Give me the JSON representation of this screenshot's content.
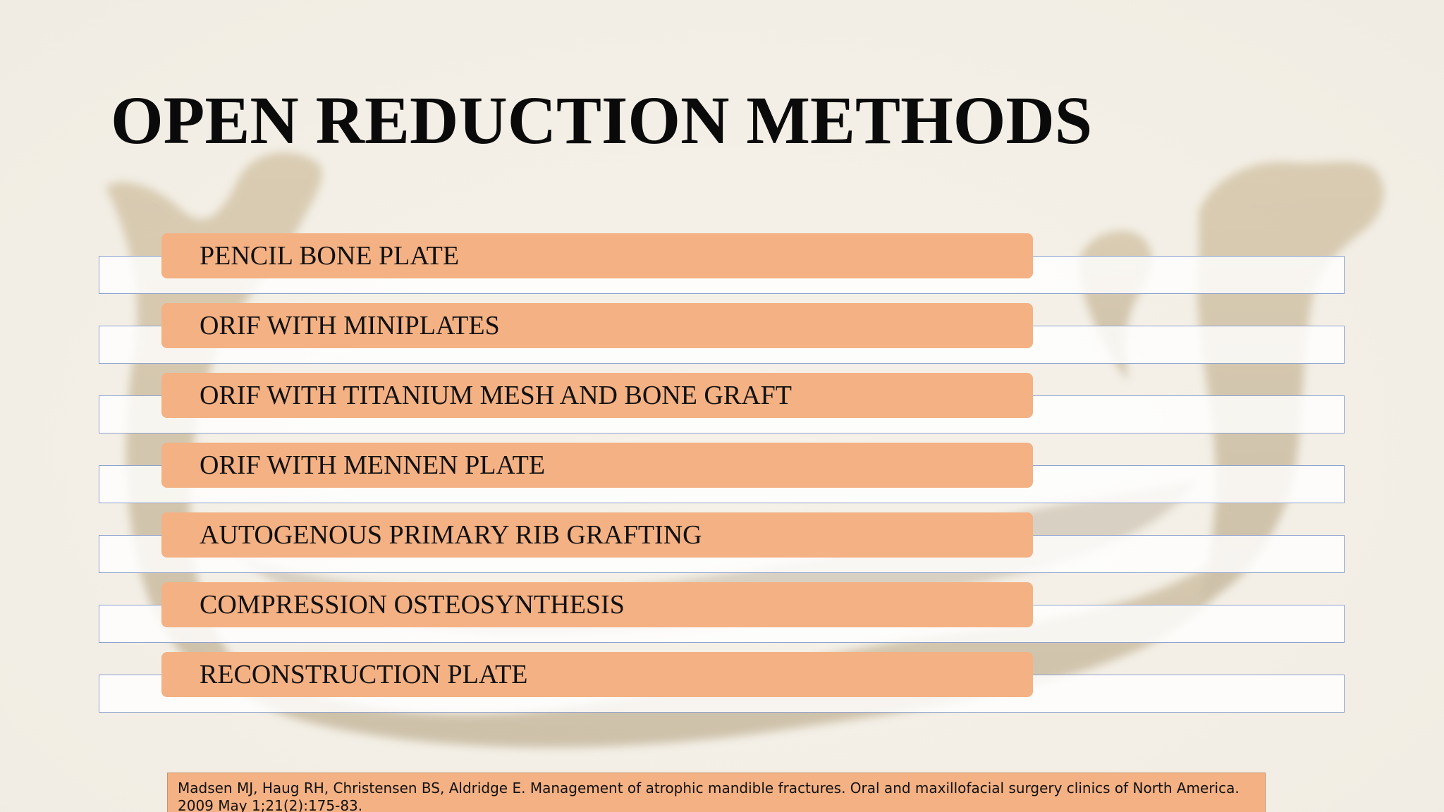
{
  "slide": {
    "title": "OPEN REDUCTION METHODS",
    "items": [
      {
        "label": "PENCIL BONE PLATE"
      },
      {
        "label": "ORIF WITH MINIPLATES"
      },
      {
        "label": "ORIF WITH TITANIUM MESH AND BONE GRAFT"
      },
      {
        "label": "ORIF WITH MENNEN PLATE"
      },
      {
        "label": "AUTOGENOUS PRIMARY RIB GRAFTING"
      },
      {
        "label": "COMPRESSION OSTEOSYNTHESIS"
      },
      {
        "label": "RECONSTRUCTION PLATE"
      }
    ],
    "citation": "Madsen MJ, Haug RH, Christensen BS, Aldridge E. Management of atrophic mandible fractures. Oral and maxillofacial surgery clinics of North America. 2009 May 1;21(2):175-83."
  },
  "colors": {
    "background": "#f4f1ea",
    "label_fill": "#f4b183",
    "strip_border": "#8ea2cf",
    "title_text": "#0a0a0a"
  }
}
